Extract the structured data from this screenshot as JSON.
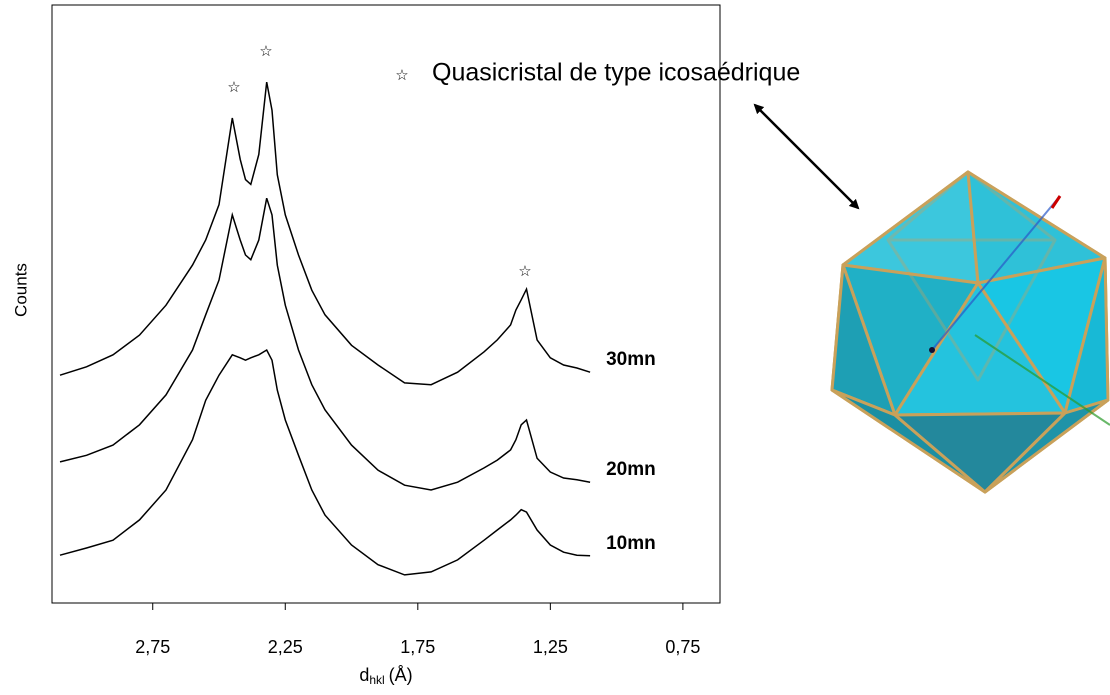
{
  "chart_data": {
    "type": "line",
    "y_label": "Counts",
    "x_label": "d",
    "x_label_sub": "hkl",
    "x_label_unit": "(Å)",
    "marker": "☆",
    "annotation": "Quasicristal de type icosaédrique",
    "xlim": [
      3.13,
      0.61
    ],
    "ylim": [
      0,
      100
    ],
    "xticks": [
      {
        "value": 2.75,
        "label": "2,75"
      },
      {
        "value": 2.25,
        "label": "2,25"
      },
      {
        "value": 1.75,
        "label": "1,75"
      },
      {
        "value": 1.25,
        "label": "1,25"
      },
      {
        "value": 0.75,
        "label": "0,75"
      }
    ],
    "x": [
      3.1,
      3.0,
      2.9,
      2.8,
      2.7,
      2.6,
      2.55,
      2.5,
      2.45,
      2.42,
      2.4,
      2.38,
      2.35,
      2.32,
      2.3,
      2.28,
      2.25,
      2.2,
      2.15,
      2.1,
      2.0,
      1.9,
      1.8,
      1.7,
      1.6,
      1.5,
      1.45,
      1.4,
      1.38,
      1.36,
      1.34,
      1.3,
      1.25,
      1.2,
      1.15,
      1.1
    ],
    "series": [
      {
        "name": "30mn",
        "color": "#000000",
        "values": [
          38.1,
          39.5,
          41.5,
          44.8,
          49.8,
          56.5,
          60.7,
          66.6,
          81.1,
          74.2,
          70.8,
          70.0,
          75.0,
          87.1,
          82.4,
          71.6,
          64.9,
          58.2,
          52.3,
          48.2,
          43.1,
          39.8,
          36.8,
          36.5,
          38.6,
          42.0,
          44.0,
          46.5,
          49.0,
          50.7,
          52.5,
          44.0,
          41.0,
          39.8,
          39.3,
          38.6
        ]
      },
      {
        "name": "20mn",
        "color": "#000000",
        "values": [
          23.6,
          24.7,
          26.4,
          29.8,
          34.8,
          42.3,
          48.2,
          54.0,
          64.9,
          60.7,
          58.2,
          57.4,
          60.7,
          67.7,
          64.9,
          56.5,
          49.8,
          42.3,
          36.5,
          32.3,
          26.4,
          22.2,
          19.7,
          18.9,
          20.2,
          22.6,
          23.9,
          25.6,
          27.3,
          29.8,
          30.6,
          24.2,
          21.9,
          20.9,
          20.6,
          20.2
        ]
      },
      {
        "name": "10mn",
        "color": "#000000",
        "values": [
          8.0,
          9.2,
          10.5,
          13.9,
          18.9,
          27.3,
          33.9,
          38.1,
          41.5,
          41.0,
          40.6,
          41.0,
          41.5,
          42.3,
          40.6,
          35.6,
          30.6,
          24.7,
          18.9,
          14.7,
          9.7,
          6.4,
          4.7,
          5.2,
          7.2,
          10.5,
          12.2,
          13.9,
          14.7,
          15.6,
          15.2,
          12.2,
          9.7,
          8.5,
          8.0,
          7.9
        ]
      }
    ]
  }
}
